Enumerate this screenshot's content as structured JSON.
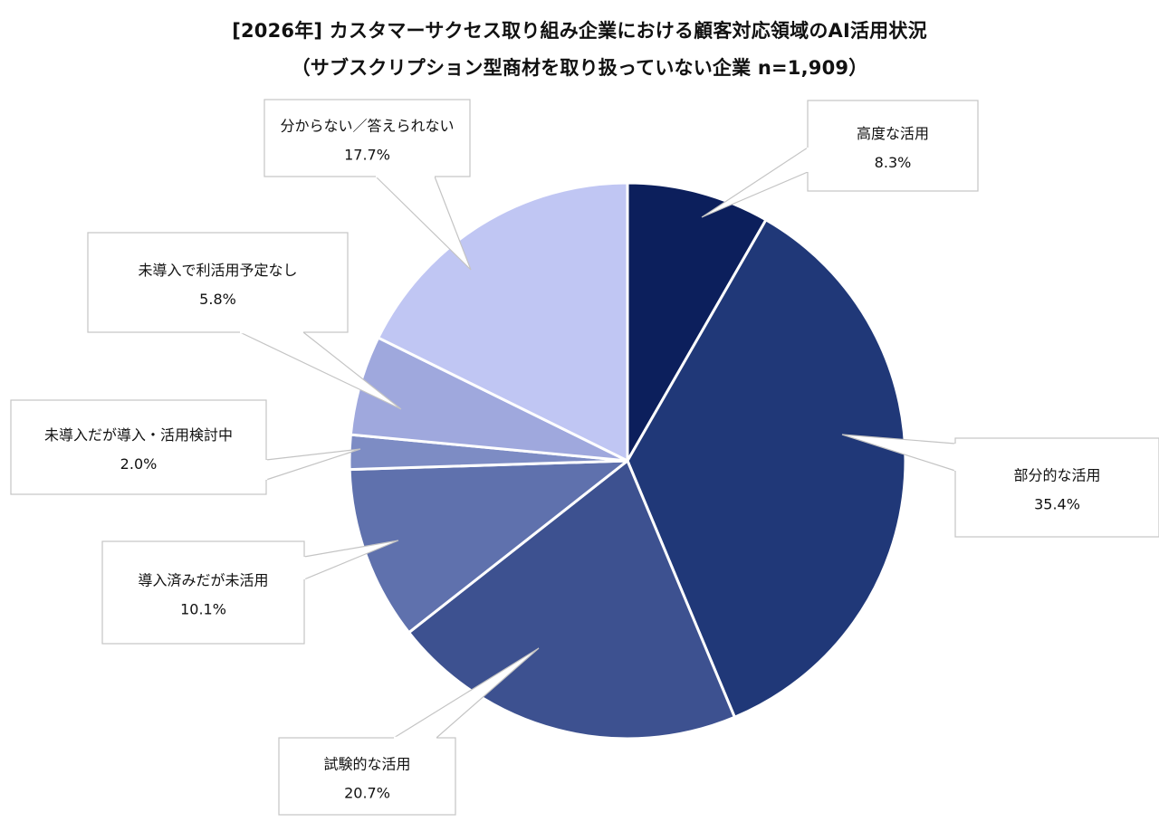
{
  "chart_data": {
    "type": "pie",
    "title": "[2026年] カスタマーサクセス取り組み企業における顧客対応領域のAI活用状況",
    "subtitle": "（サブスクリプション型商材を取り扱っていない企業  n=1,909）",
    "slices": [
      {
        "label": "高度な活用",
        "value": 8.3,
        "value_label": "8.3%",
        "color": "#0c1f5c"
      },
      {
        "label": "部分的な活用",
        "value": 35.4,
        "value_label": "35.4%",
        "color": "#203878"
      },
      {
        "label": "試験的な活用",
        "value": 20.7,
        "value_label": "20.7%",
        "color": "#3d5190"
      },
      {
        "label": "導入済みだが未活用",
        "value": 10.1,
        "value_label": "10.1%",
        "color": "#5f71ad"
      },
      {
        "label": "未導入だが導入・活用検討中",
        "value": 2.0,
        "value_label": "2.0%",
        "color": "#7d8cc4"
      },
      {
        "label": "未導入で利活用予定なし",
        "value": 5.8,
        "value_label": "5.8%",
        "color": "#9fa8dd"
      },
      {
        "label": "分からない／答えられない",
        "value": 17.7,
        "value_label": "17.7%",
        "color": "#c0c6f3"
      }
    ]
  }
}
